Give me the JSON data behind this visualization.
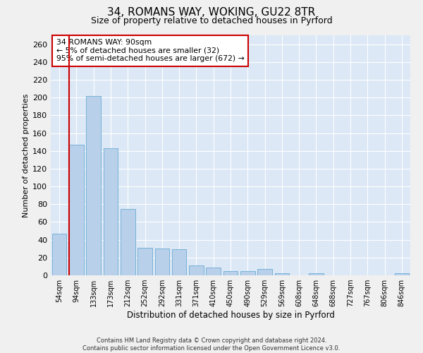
{
  "title1": "34, ROMANS WAY, WOKING, GU22 8TR",
  "title2": "Size of property relative to detached houses in Pyrford",
  "xlabel": "Distribution of detached houses by size in Pyrford",
  "ylabel": "Number of detached properties",
  "categories": [
    "54sqm",
    "94sqm",
    "133sqm",
    "173sqm",
    "212sqm",
    "252sqm",
    "292sqm",
    "331sqm",
    "371sqm",
    "410sqm",
    "450sqm",
    "490sqm",
    "529sqm",
    "569sqm",
    "608sqm",
    "648sqm",
    "688sqm",
    "727sqm",
    "767sqm",
    "806sqm",
    "846sqm"
  ],
  "values": [
    47,
    147,
    202,
    143,
    75,
    31,
    30,
    29,
    11,
    9,
    5,
    5,
    7,
    2,
    0,
    2,
    0,
    0,
    0,
    0,
    2
  ],
  "bar_color": "#b8d0ea",
  "bar_edge_color": "#6aaad4",
  "annotation_line1": "34 ROMANS WAY: 90sqm",
  "annotation_line2": "← 5% of detached houses are smaller (32)",
  "annotation_line3": "95% of semi-detached houses are larger (672) →",
  "vline_color": "#cc0000",
  "vline_x": 0.575,
  "ylim": [
    0,
    270
  ],
  "yticks": [
    0,
    20,
    40,
    60,
    80,
    100,
    120,
    140,
    160,
    180,
    200,
    220,
    240,
    260
  ],
  "footnote_line1": "Contains HM Land Registry data © Crown copyright and database right 2024.",
  "footnote_line2": "Contains public sector information licensed under the Open Government Licence v3.0.",
  "background_color": "#dce8f5",
  "grid_color": "#ffffff",
  "fig_bg_color": "#f0f0f0"
}
